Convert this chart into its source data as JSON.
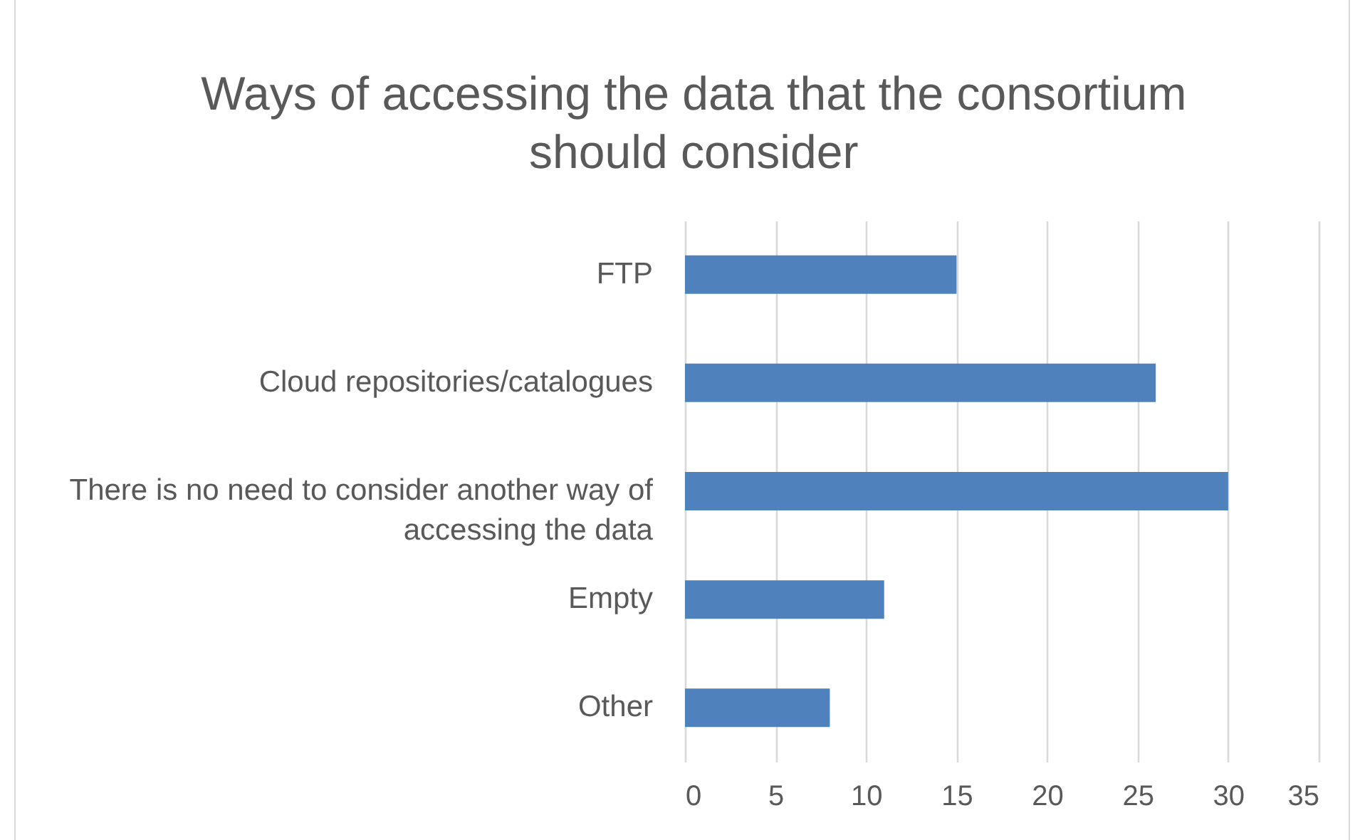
{
  "chart_data": {
    "type": "bar",
    "orientation": "horizontal",
    "title": "Ways of accessing the data that the consortium should consider",
    "categories": [
      "FTP",
      "Cloud repositories/catalogues",
      "There is no need to consider another way of accessing the data",
      "Empty",
      "Other"
    ],
    "values": [
      15,
      26,
      30,
      11,
      8
    ],
    "color": "#4f81bd",
    "xlim": [
      0,
      35
    ],
    "xticks": [
      0,
      5,
      10,
      15,
      20,
      25,
      30,
      35
    ],
    "grid": "x"
  }
}
